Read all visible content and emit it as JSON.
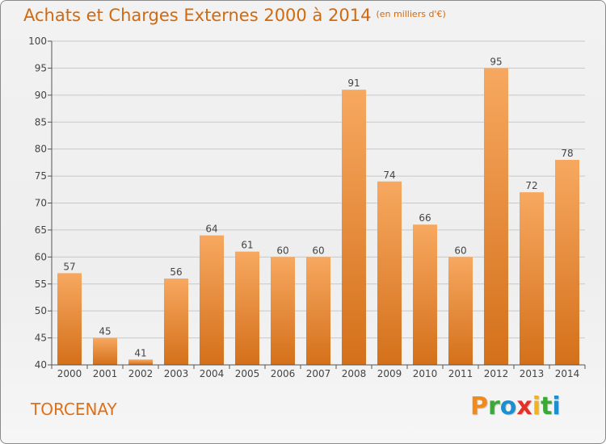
{
  "title": "Achats et Charges Externes 2000 à 2014",
  "subtitle": "(en milliers d'€)",
  "place": "TORCENAY",
  "logo": {
    "letters": [
      "P",
      "r",
      "o",
      "x",
      "i",
      "t",
      "i"
    ],
    "colors": [
      "#f08a1c",
      "#3aa935",
      "#1d8ed0",
      "#e63027",
      "#f2b21b",
      "#3aa935",
      "#1d8ed0"
    ]
  },
  "colors": {
    "bar_light": "#f7a860",
    "bar_dark": "#d4701a",
    "title": "#d2690f",
    "grid": "#c8c8c8",
    "axis": "#555555"
  },
  "chart_data": {
    "type": "bar",
    "categories": [
      "2000",
      "2001",
      "2002",
      "2003",
      "2004",
      "2005",
      "2006",
      "2007",
      "2008",
      "2009",
      "2010",
      "2011",
      "2012",
      "2013",
      "2014"
    ],
    "values": [
      57,
      45,
      41,
      56,
      64,
      61,
      60,
      60,
      91,
      74,
      66,
      60,
      95,
      72,
      78
    ],
    "data_labels": [
      "57",
      "45",
      "41",
      "56",
      "64",
      "61",
      "60",
      "60",
      "91",
      "74",
      "66",
      "60",
      "95",
      "72",
      "78"
    ],
    "yticks": [
      40,
      45,
      50,
      55,
      60,
      65,
      70,
      75,
      80,
      85,
      90,
      95,
      100
    ],
    "ylim": [
      40,
      100
    ],
    "grid": true,
    "legend": "none"
  }
}
